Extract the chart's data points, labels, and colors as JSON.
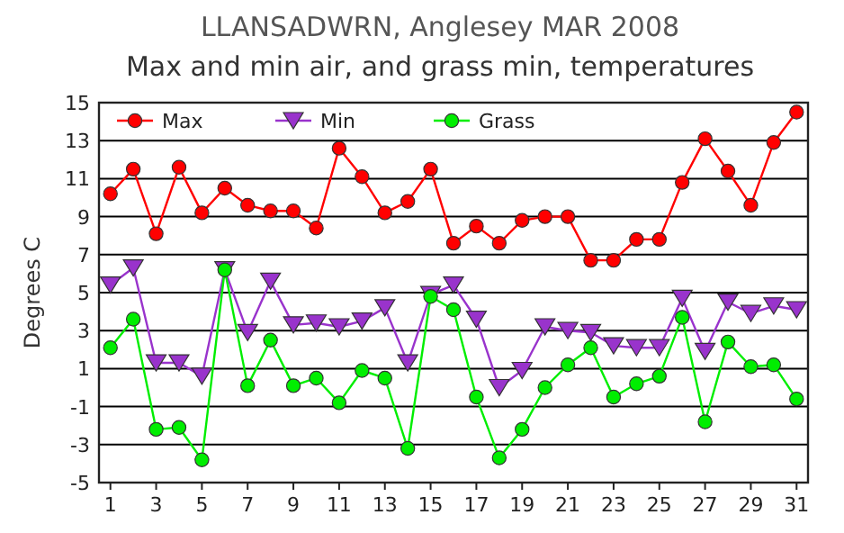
{
  "chart_data": {
    "type": "line",
    "title": "LLANSADWRN, Anglesey MAR 2008",
    "subtitle": "Max and min air, and grass min, temperatures",
    "ylabel": "Degrees C",
    "x": [
      1,
      2,
      3,
      4,
      5,
      6,
      7,
      8,
      9,
      10,
      11,
      12,
      13,
      14,
      15,
      16,
      17,
      18,
      19,
      20,
      21,
      22,
      23,
      24,
      25,
      26,
      27,
      28,
      29,
      30,
      31
    ],
    "xlim": [
      0.5,
      31.5
    ],
    "xticks": [
      1,
      3,
      5,
      7,
      9,
      11,
      13,
      15,
      17,
      19,
      21,
      23,
      25,
      27,
      29,
      31
    ],
    "ylim": [
      -5,
      15
    ],
    "yticks": [
      -5,
      -3,
      -1,
      1,
      3,
      5,
      7,
      9,
      11,
      13,
      15
    ],
    "grid": "y",
    "legend": "top",
    "series": [
      {
        "name": "Max",
        "color": "#ff0000",
        "marker": "circle",
        "values": [
          10.2,
          11.5,
          8.1,
          11.6,
          9.2,
          10.5,
          9.6,
          9.3,
          9.3,
          8.4,
          12.6,
          11.1,
          9.2,
          9.8,
          11.5,
          7.6,
          8.5,
          7.6,
          8.8,
          9,
          9,
          6.7,
          6.7,
          7.8,
          7.8,
          10.8,
          13.1,
          11.4,
          9.6,
          12.9,
          14.5
        ]
      },
      {
        "name": "Min",
        "color": "#9933cc",
        "marker": "triangle",
        "values": [
          5.4,
          6.3,
          1.3,
          1.3,
          0.6,
          6.2,
          2.9,
          5.6,
          3.3,
          3.4,
          3.2,
          3.5,
          4.2,
          1.3,
          4.9,
          5.4,
          3.6,
          0,
          0.9,
          3.2,
          3,
          2.9,
          2.2,
          2.1,
          2.1,
          4.7,
          1.9,
          4.5,
          3.9,
          4.3,
          4.1
        ]
      },
      {
        "name": "Grass",
        "color": "#00ee00",
        "marker": "circle",
        "values": [
          2.1,
          3.6,
          -2.2,
          -2.1,
          -3.8,
          6.2,
          0.1,
          2.5,
          0.1,
          0.5,
          -0.8,
          0.9,
          0.5,
          -3.2,
          4.8,
          4.1,
          -0.5,
          -3.7,
          -2.2,
          0,
          1.2,
          2.1,
          -0.5,
          0.2,
          0.6,
          3.7,
          -1.8,
          2.4,
          1.1,
          1.2,
          -0.6
        ]
      }
    ]
  }
}
